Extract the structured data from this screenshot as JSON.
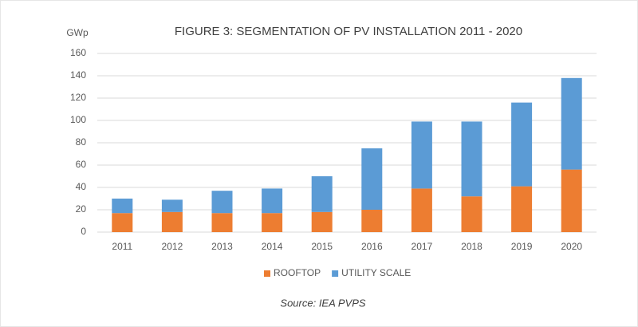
{
  "chart_data": {
    "type": "stacked-bar",
    "title": "FIGURE 3: SEGMENTATION OF PV INSTALLATION 2011 - 2020",
    "y_label": "GWp",
    "source": "Source: IEA PVPS",
    "categories": [
      "2011",
      "2012",
      "2013",
      "2014",
      "2015",
      "2016",
      "2017",
      "2018",
      "2019",
      "2020"
    ],
    "series": [
      {
        "name": "ROOFTOP",
        "color": "#ed7d31",
        "values": [
          17,
          18,
          17,
          17,
          18,
          20,
          39,
          32,
          41,
          56
        ]
      },
      {
        "name": "UTILITY SCALE",
        "color": "#5b9bd5",
        "values": [
          13,
          11,
          20,
          22,
          32,
          55,
          60,
          67,
          75,
          82
        ]
      }
    ],
    "ylim": [
      0,
      160
    ],
    "yticks": [
      0,
      20,
      40,
      60,
      80,
      100,
      120,
      140,
      160
    ],
    "grid": true,
    "legend": "bottom"
  }
}
